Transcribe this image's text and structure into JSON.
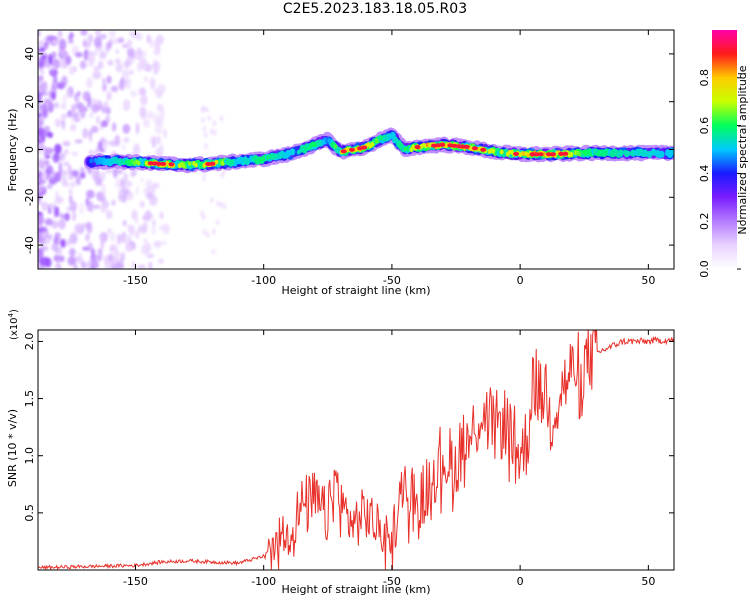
{
  "title": "C2E5.2023.183.18.05.R03",
  "colors": {
    "snr_line": "#e8312a",
    "colormap": [
      "#ffffff",
      "#e9d2ff",
      "#b57cff",
      "#7a1cff",
      "#1a1aff",
      "#00c8ff",
      "#00ff5a",
      "#c8ff00",
      "#ffcc00",
      "#ff1a1a",
      "#ff00a8"
    ]
  },
  "chart_data": [
    {
      "type": "heatmap",
      "xlabel": "Height of straight line (km)",
      "ylabel": "Frequency (Hz)",
      "xlim": [
        -188,
        60
      ],
      "ylim": [
        -50,
        50
      ],
      "xticks": [
        "-150",
        "-100",
        "-50",
        "0",
        "50"
      ],
      "xtick_values": [
        -150,
        -100,
        -50,
        0,
        50
      ],
      "yticks": [
        "-40",
        "-20",
        "0",
        "20",
        "40"
      ],
      "ytick_values": [
        -40,
        -20,
        0,
        20,
        40
      ],
      "colorbar": {
        "label": "Normalized spectral amplitude",
        "range": [
          0,
          1
        ],
        "ticks": [
          "0.0",
          "0.2",
          "0.4",
          "0.6",
          "0.8"
        ],
        "tick_values": [
          0,
          0.2,
          0.4,
          0.6,
          0.8
        ]
      },
      "ridge": {
        "x": [
          -168,
          -155,
          -140,
          -130,
          -120,
          -110,
          -100,
          -90,
          -80,
          -75,
          -70,
          -60,
          -55,
          -50,
          -45,
          -40,
          -30,
          -20,
          -10,
          0,
          12,
          25,
          40,
          60
        ],
        "frequency": [
          -5,
          -5,
          -6,
          -6.5,
          -6,
          -5,
          -4,
          -2,
          2,
          4,
          -1,
          1,
          4,
          6,
          0,
          1,
          2,
          1,
          -1,
          -2,
          -2,
          -1.5,
          -1.5,
          -1.5
        ],
        "amplitude": [
          0.45,
          0.55,
          0.85,
          0.65,
          0.8,
          0.5,
          0.6,
          0.5,
          0.6,
          0.45,
          0.75,
          0.8,
          0.6,
          0.5,
          0.6,
          0.8,
          0.9,
          0.85,
          0.7,
          0.8,
          0.9,
          0.6,
          0.55,
          0.5
        ]
      }
    },
    {
      "type": "line",
      "xlabel": "Height of straight line (km)",
      "ylabel": "SNR (10 * v/v)",
      "y_multiplier": "(x10",
      "y_multiplier_exp": "4",
      "xlim": [
        -188,
        60
      ],
      "ylim": [
        0,
        2.1
      ],
      "xticks": [
        "-150",
        "-100",
        "-50",
        "0",
        "50"
      ],
      "xtick_values": [
        -150,
        -100,
        -50,
        0,
        50
      ],
      "yticks": [
        "0.5",
        "1.0",
        "1.5",
        "2.0"
      ],
      "ytick_values": [
        0.5,
        1.0,
        1.5,
        2.0
      ],
      "series": [
        {
          "x": [
            -188,
            -170,
            -150,
            -140,
            -130,
            -120,
            -110,
            -100,
            -95,
            -90,
            -85,
            -80,
            -75,
            -72,
            -70,
            -65,
            -60,
            -55,
            -50,
            -45,
            -42,
            -40,
            -35,
            -30,
            -25,
            -22,
            -20,
            -15,
            -10,
            -5,
            0,
            3,
            5,
            8,
            10,
            12,
            15,
            18,
            20,
            25,
            30,
            35,
            40,
            45,
            50,
            55,
            60
          ],
          "y": [
            0.02,
            0.03,
            0.04,
            0.07,
            0.08,
            0.07,
            0.06,
            0.12,
            0.3,
            0.35,
            0.55,
            0.6,
            0.45,
            0.8,
            0.55,
            0.4,
            0.5,
            0.35,
            0.3,
            0.75,
            0.65,
            0.5,
            0.85,
            1.0,
            0.9,
            1.2,
            1.1,
            1.4,
            1.25,
            1.3,
            1.0,
            1.15,
            1.75,
            1.5,
            1.6,
            1.3,
            1.55,
            1.65,
            1.75,
            1.8,
            1.9,
            1.95,
            2.0,
            2.0,
            2.0,
            2.01,
            2.01
          ]
        }
      ]
    }
  ]
}
